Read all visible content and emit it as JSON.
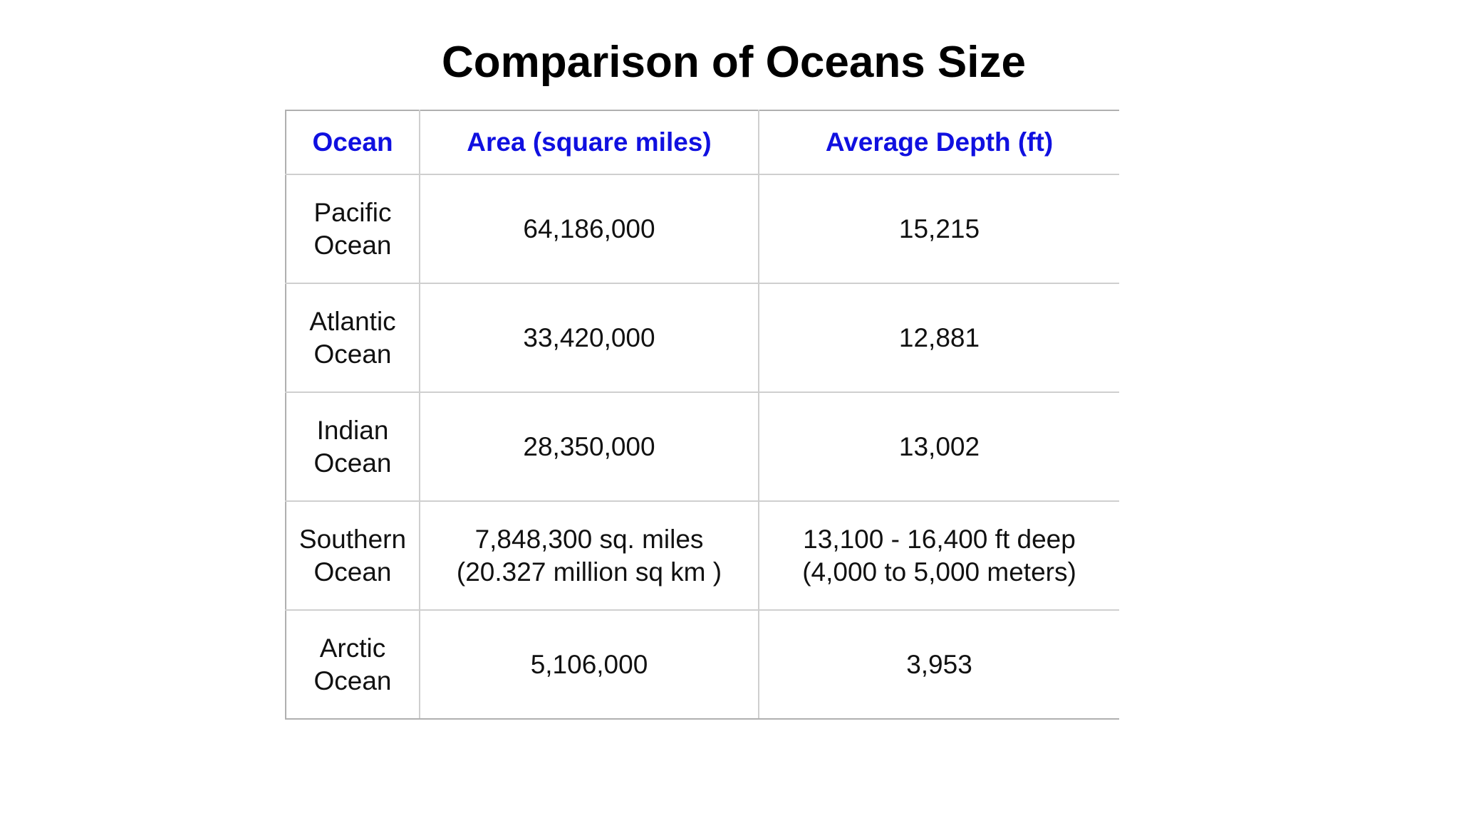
{
  "title": "Comparison of Oceans Size",
  "table": {
    "headers": [
      "Ocean",
      "Area (square miles)",
      "Average Depth (ft)"
    ],
    "rows": [
      {
        "ocean": [
          "Pacific",
          "Ocean"
        ],
        "area": [
          "64,186,000"
        ],
        "depth": [
          "15,215"
        ]
      },
      {
        "ocean": [
          "Atlantic",
          "Ocean"
        ],
        "area": [
          "33,420,000"
        ],
        "depth": [
          "12,881"
        ]
      },
      {
        "ocean": [
          "Indian",
          "Ocean"
        ],
        "area": [
          "28,350,000"
        ],
        "depth": [
          "13,002"
        ]
      },
      {
        "ocean": [
          "Southern",
          "Ocean"
        ],
        "area": [
          "7,848,300 sq. miles",
          "(20.327 million sq km )"
        ],
        "depth": [
          "13,100 - 16,400 ft deep",
          "(4,000 to 5,000 meters)"
        ]
      },
      {
        "ocean": [
          "Arctic",
          "Ocean"
        ],
        "area": [
          "5,106,000"
        ],
        "depth": [
          "3,953"
        ]
      }
    ]
  },
  "colors": {
    "header_text": "#1010e0",
    "grid_line": "#cfcfcf",
    "body_text": "#111111"
  }
}
